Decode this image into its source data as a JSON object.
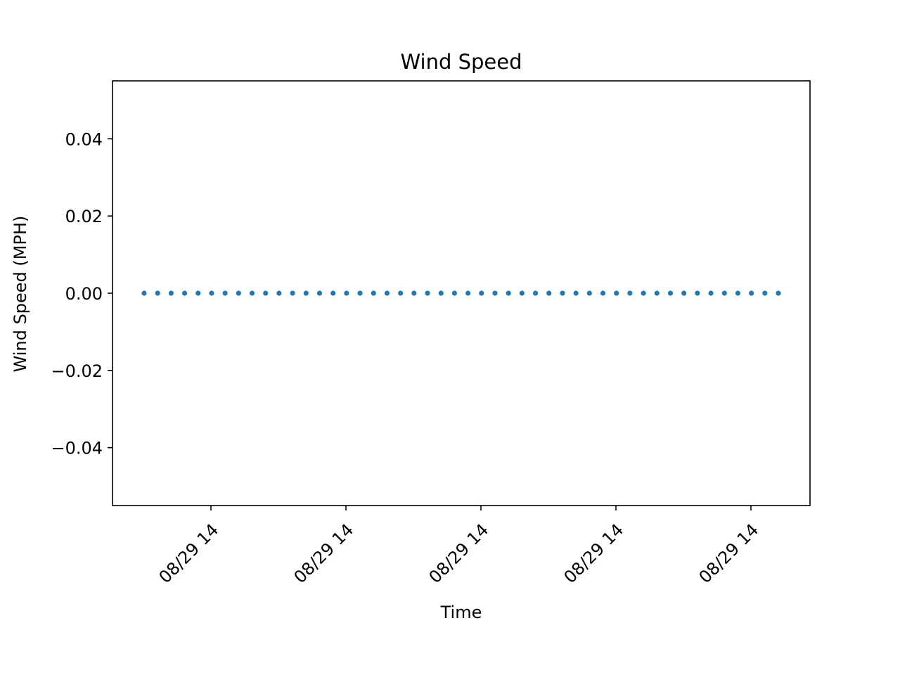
{
  "chart_data": {
    "type": "scatter",
    "title": "Wind Speed",
    "xlabel": "Time",
    "ylabel": "Wind Speed (MPH)",
    "ylim": [
      -0.055,
      0.055
    ],
    "y_ticks": [
      "0.04",
      "0.02",
      "0.00",
      "−0.02",
      "−0.04"
    ],
    "y_tick_values": [
      0.04,
      0.02,
      0.0,
      -0.02,
      -0.04
    ],
    "x_ticks": [
      "08/29 14",
      "08/29 14",
      "08/29 14",
      "08/29 14",
      "08/29 14"
    ],
    "grid": false,
    "legend": "none",
    "color": "#1f77b4",
    "series": [
      {
        "values": [
          0,
          0,
          0,
          0,
          0,
          0,
          0,
          0,
          0,
          0,
          0,
          0,
          0,
          0,
          0,
          0,
          0,
          0,
          0,
          0,
          0,
          0,
          0,
          0,
          0,
          0,
          0,
          0,
          0,
          0,
          0,
          0,
          0,
          0,
          0,
          0,
          0,
          0,
          0,
          0,
          0,
          0,
          0,
          0,
          0,
          0,
          0,
          0
        ]
      }
    ]
  }
}
